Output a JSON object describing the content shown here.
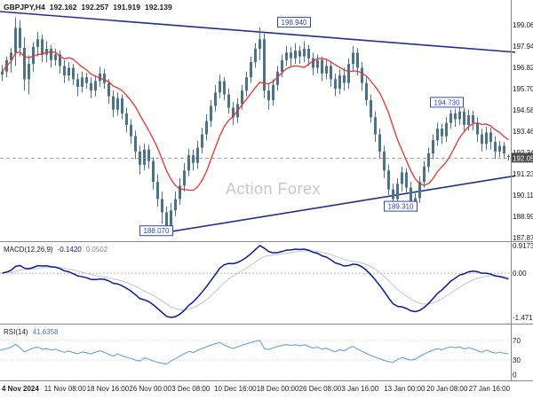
{
  "watermark": "Action Forex",
  "header": {
    "symbol_period": "GBPJPY,H4",
    "open": "192.162",
    "high": "192.257",
    "low": "191.919",
    "close": "192.139"
  },
  "colors": {
    "background": "#ffffff",
    "candle": "#4a7387",
    "ma": "#e8342c",
    "trendline": "#232f8f",
    "annotation": "#3347b8",
    "macd_main": "#0b1899",
    "macd_signal": "#c4c4c4",
    "rsi": "#6fa8dc",
    "price_tag_bg": "#4a4a4a",
    "axis_text": "#1b1b1b",
    "watermark": "#c8c8c8",
    "grid": "#9a9a9a"
  },
  "chart_data": {
    "type": "candlestick",
    "symbol": "GBPJPY",
    "timeframe": "H4",
    "title": "GBPJPY,H4 192.162 192.257 191.919 192.139",
    "current_price": "192.050",
    "y_axis_labels": [
      "199.060",
      "197.940",
      "196.820",
      "195.700",
      "194.580",
      "193.460",
      "192.340",
      "191.230",
      "190.110",
      "188.990",
      "187.870"
    ],
    "x_labels": [
      "4 Nov 2024",
      "11 Nov 08:00",
      "18 Nov 16:00",
      "26 Nov 00:00",
      "3 Dec 08:00",
      "10 Dec 16:00",
      "18 Dec 00:00",
      "26 Dec 08:00",
      "3 Jan 16:00",
      "13 Jan 00:00",
      "20 Jan 08:00",
      "27 Jan 16:00"
    ],
    "ohlc_order": [
      "open",
      "high",
      "low",
      "close"
    ],
    "candles": [
      [
        196.45,
        196.95,
        196.1,
        196.6
      ],
      [
        196.6,
        197.4,
        196.3,
        197.2
      ],
      [
        197.2,
        197.85,
        196.55,
        197.6
      ],
      [
        197.6,
        199.45,
        196.9,
        198.9
      ],
      [
        198.9,
        199.3,
        197.4,
        197.85
      ],
      [
        197.85,
        198.4,
        195.6,
        196.2
      ],
      [
        196.2,
        197.45,
        195.4,
        197.0
      ],
      [
        197.0,
        198.15,
        196.6,
        197.9
      ],
      [
        197.9,
        198.7,
        197.4,
        198.3
      ],
      [
        198.3,
        198.55,
        197.1,
        197.5
      ],
      [
        197.5,
        198.2,
        197.1,
        197.8
      ],
      [
        197.8,
        198.0,
        196.8,
        197.2
      ],
      [
        197.2,
        197.8,
        196.9,
        197.5
      ],
      [
        197.5,
        197.7,
        196.5,
        196.9
      ],
      [
        196.9,
        197.2,
        196.0,
        196.4
      ],
      [
        196.4,
        197.1,
        196.1,
        196.8
      ],
      [
        196.8,
        197.0,
        195.9,
        196.2
      ],
      [
        196.2,
        196.5,
        195.3,
        195.8
      ],
      [
        195.8,
        196.6,
        195.5,
        196.3
      ],
      [
        196.3,
        196.55,
        195.7,
        196.0
      ],
      [
        196.0,
        196.3,
        195.2,
        195.6
      ],
      [
        195.6,
        196.4,
        195.3,
        196.1
      ],
      [
        196.1,
        196.85,
        195.8,
        196.5
      ],
      [
        196.5,
        196.75,
        195.7,
        196.0
      ],
      [
        196.0,
        196.2,
        194.9,
        195.3
      ],
      [
        195.3,
        195.6,
        194.2,
        194.6
      ],
      [
        194.6,
        195.5,
        194.3,
        195.2
      ],
      [
        195.2,
        195.4,
        194.1,
        194.4
      ],
      [
        194.4,
        194.7,
        193.4,
        193.8
      ],
      [
        193.8,
        194.1,
        192.8,
        193.2
      ],
      [
        193.2,
        193.5,
        192.0,
        192.4
      ],
      [
        192.4,
        192.7,
        191.2,
        191.7
      ],
      [
        191.7,
        192.8,
        191.4,
        192.5
      ],
      [
        192.5,
        192.75,
        191.5,
        191.9
      ],
      [
        191.9,
        192.1,
        190.4,
        190.8
      ],
      [
        190.8,
        191.2,
        189.5,
        189.9
      ],
      [
        189.9,
        190.3,
        188.6,
        189.2
      ],
      [
        189.2,
        189.5,
        188.07,
        188.5
      ],
      [
        188.5,
        189.7,
        188.2,
        189.3
      ],
      [
        189.3,
        190.3,
        189.0,
        189.9
      ],
      [
        189.9,
        191.0,
        189.6,
        190.6
      ],
      [
        190.6,
        191.8,
        190.3,
        191.4
      ],
      [
        191.4,
        192.55,
        191.1,
        192.2
      ],
      [
        192.2,
        192.5,
        191.4,
        191.8
      ],
      [
        191.8,
        192.95,
        191.5,
        192.6
      ],
      [
        192.6,
        193.65,
        192.3,
        193.3
      ],
      [
        193.3,
        194.35,
        193.0,
        194.0
      ],
      [
        194.0,
        195.1,
        193.7,
        194.8
      ],
      [
        194.8,
        195.9,
        194.5,
        195.5
      ],
      [
        195.5,
        196.45,
        195.2,
        196.1
      ],
      [
        196.1,
        196.3,
        195.1,
        195.4
      ],
      [
        195.4,
        195.7,
        194.4,
        194.7
      ],
      [
        194.7,
        195.0,
        193.8,
        194.2
      ],
      [
        194.2,
        195.2,
        193.9,
        194.9
      ],
      [
        194.9,
        195.9,
        194.6,
        195.6
      ],
      [
        195.6,
        196.6,
        195.3,
        196.3
      ],
      [
        196.3,
        197.4,
        196.0,
        197.1
      ],
      [
        197.1,
        198.1,
        196.8,
        197.8
      ],
      [
        197.8,
        198.94,
        197.2,
        198.3
      ],
      [
        198.3,
        198.6,
        195.2,
        195.6
      ],
      [
        195.6,
        196.0,
        194.6,
        195.1
      ],
      [
        195.1,
        196.2,
        194.8,
        195.9
      ],
      [
        195.9,
        196.9,
        195.6,
        196.6
      ],
      [
        196.6,
        197.5,
        196.3,
        197.2
      ],
      [
        197.2,
        197.95,
        196.9,
        197.6
      ],
      [
        197.6,
        197.9,
        196.9,
        197.3
      ],
      [
        197.3,
        198.1,
        197.0,
        197.7
      ],
      [
        197.7,
        197.95,
        197.0,
        197.4
      ],
      [
        197.4,
        198.2,
        197.1,
        197.8
      ],
      [
        197.8,
        198.0,
        196.9,
        197.3
      ],
      [
        197.3,
        197.6,
        196.4,
        196.8
      ],
      [
        196.8,
        197.5,
        196.5,
        197.2
      ],
      [
        197.2,
        197.4,
        196.1,
        196.5
      ],
      [
        196.5,
        197.2,
        196.2,
        196.9
      ],
      [
        196.9,
        197.1,
        195.8,
        196.2
      ],
      [
        196.2,
        196.5,
        195.3,
        195.7
      ],
      [
        195.7,
        196.7,
        195.4,
        196.4
      ],
      [
        196.4,
        196.8,
        195.6,
        196.0
      ],
      [
        196.0,
        197.3,
        195.7,
        197.0
      ],
      [
        197.0,
        197.95,
        196.6,
        197.6
      ],
      [
        197.6,
        197.85,
        196.4,
        196.8
      ],
      [
        196.8,
        197.1,
        195.6,
        196.0
      ],
      [
        196.0,
        196.3,
        194.8,
        195.1
      ],
      [
        195.1,
        195.4,
        193.9,
        194.2
      ],
      [
        194.2,
        194.5,
        192.9,
        193.3
      ],
      [
        193.3,
        193.6,
        192.0,
        192.4
      ],
      [
        192.4,
        192.7,
        191.0,
        191.4
      ],
      [
        191.4,
        191.7,
        190.1,
        190.4
      ],
      [
        190.4,
        190.7,
        189.6,
        189.9
      ],
      [
        189.9,
        191.0,
        189.6,
        190.7
      ],
      [
        190.7,
        191.6,
        190.3,
        191.3
      ],
      [
        191.3,
        191.5,
        190.2,
        190.5
      ],
      [
        190.5,
        190.8,
        189.31,
        189.7
      ],
      [
        189.7,
        190.2,
        189.35,
        189.95
      ],
      [
        189.95,
        191.1,
        189.7,
        190.8
      ],
      [
        190.8,
        191.9,
        190.5,
        191.6
      ],
      [
        191.6,
        192.6,
        191.3,
        192.3
      ],
      [
        192.3,
        193.3,
        192.0,
        193.0
      ],
      [
        193.0,
        193.9,
        192.7,
        193.6
      ],
      [
        193.6,
        193.85,
        192.8,
        193.2
      ],
      [
        193.2,
        194.2,
        192.9,
        193.9
      ],
      [
        193.9,
        194.6,
        193.6,
        194.4
      ],
      [
        194.4,
        194.65,
        193.7,
        194.1
      ],
      [
        194.1,
        194.73,
        193.8,
        194.5
      ],
      [
        194.5,
        194.7,
        193.4,
        193.8
      ],
      [
        193.8,
        194.6,
        193.5,
        194.3
      ],
      [
        194.3,
        194.55,
        193.5,
        193.9
      ],
      [
        193.9,
        194.2,
        192.9,
        193.3
      ],
      [
        193.3,
        193.6,
        192.4,
        192.8
      ],
      [
        192.8,
        193.7,
        192.5,
        193.4
      ],
      [
        193.4,
        193.65,
        192.5,
        192.9
      ],
      [
        192.9,
        193.2,
        192.0,
        192.4
      ],
      [
        192.4,
        192.95,
        192.1,
        192.7
      ],
      [
        192.7,
        192.9,
        192.0,
        192.3
      ],
      [
        192.16,
        192.26,
        191.92,
        192.14
      ]
    ],
    "moving_average": {
      "type": "SMA",
      "period": 10,
      "color_key": "ma"
    },
    "trendlines": [
      {
        "from": [
          -0.5,
          199.76
        ],
        "to": [
          115.5,
          197.62
        ]
      },
      {
        "from": [
          33,
          188.0
        ],
        "to": [
          115.5,
          191.12
        ]
      }
    ],
    "annotations": [
      {
        "text": "198.940",
        "index": 58,
        "price": 198.94,
        "offset": [
          20,
          -6
        ]
      },
      {
        "text": "194.730",
        "index": 103,
        "price": 194.73,
        "offset": [
          -33,
          -6
        ]
      },
      {
        "text": "189.310",
        "index": 92,
        "price": 189.31,
        "offset": [
          -30,
          -5
        ]
      },
      {
        "text": "188.070",
        "index": 37,
        "price": 188.07,
        "offset": [
          -30,
          -4
        ]
      }
    ],
    "indicator_panels": [
      {
        "name": "MACD",
        "title": "MACD(12,26,9)",
        "main_value": "-0.1420",
        "signal_value": "0.0502",
        "params": [
          12,
          26,
          9
        ],
        "axis_labels": [
          "0.9173",
          "0.00",
          "-1.4714"
        ]
      },
      {
        "name": "RSI",
        "title": "RSI(14)",
        "value": "41.6358",
        "period": 14,
        "axis_labels": [
          "70",
          "30",
          "0"
        ],
        "levels": [
          70,
          30
        ]
      }
    ]
  }
}
